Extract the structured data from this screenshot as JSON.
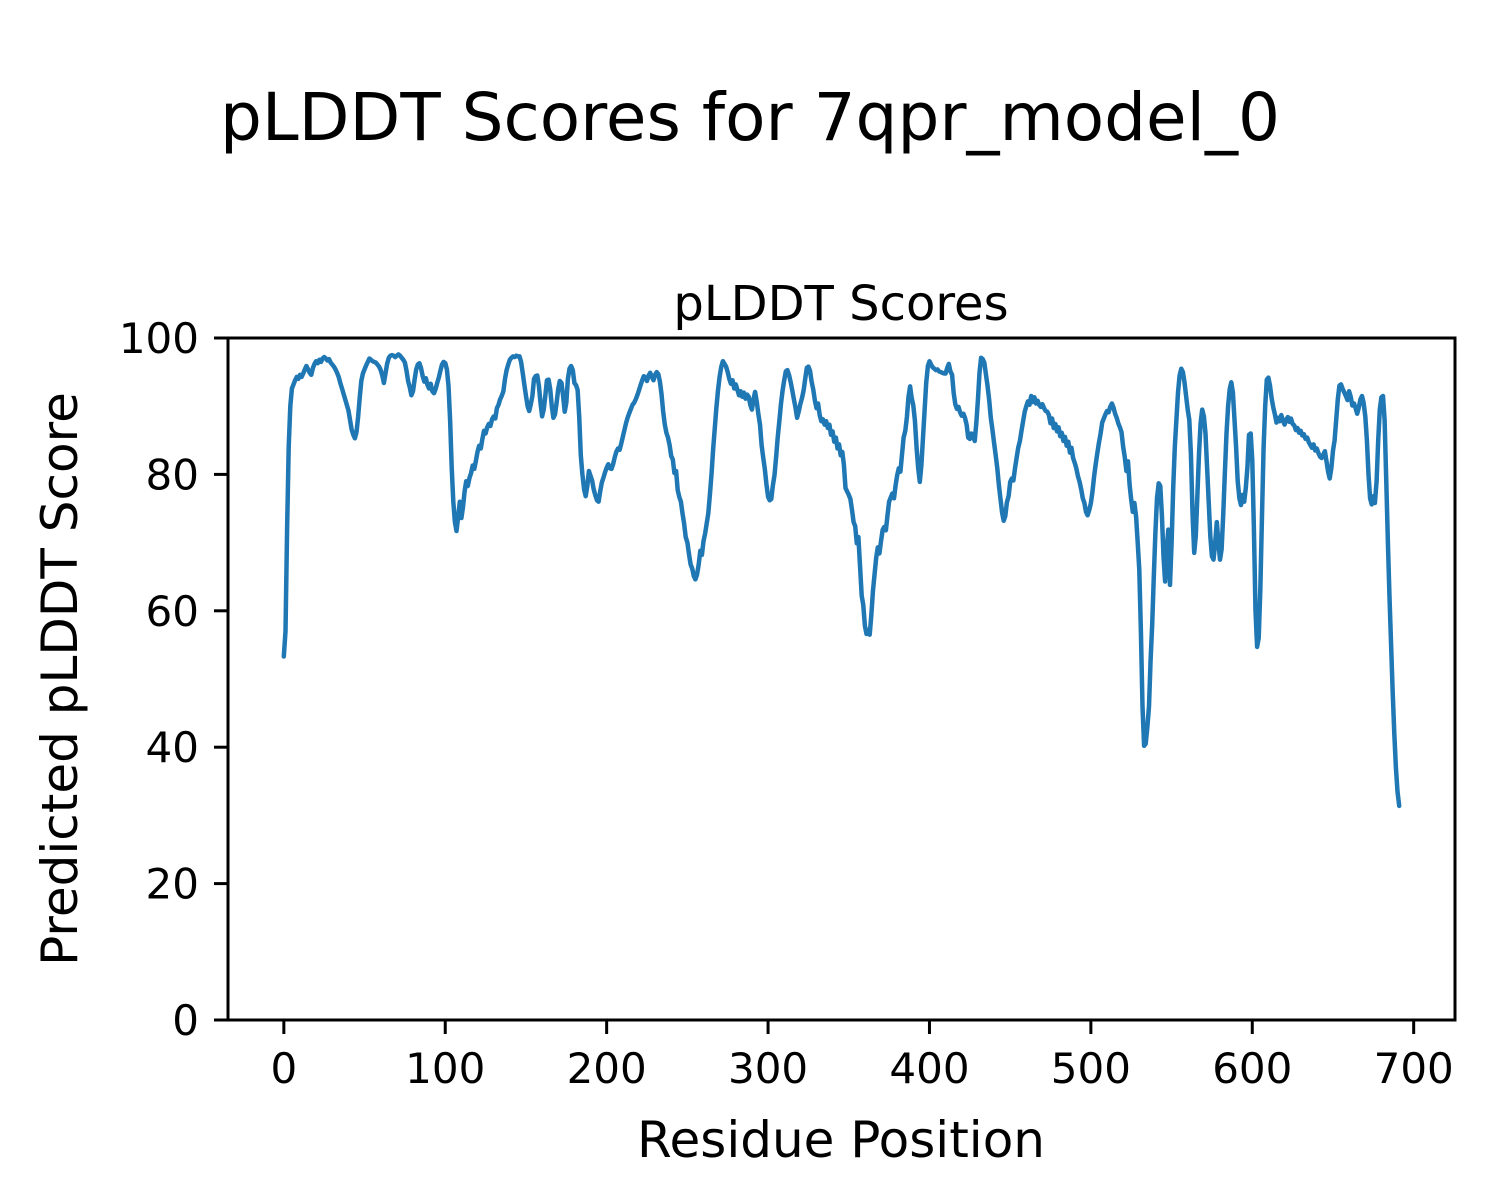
{
  "figure": {
    "suptitle": "pLDDT Scores for 7qpr_model_0",
    "axes_title": "pLDDT Scores",
    "xlabel": "Residue Position",
    "ylabel": "Predicted pLDDT Score",
    "background_color": "#ffffff",
    "line_color": "#1f77b4",
    "spine_color": "#000000"
  },
  "chart_data": {
    "type": "line",
    "title": "pLDDT Scores",
    "suptitle": "pLDDT Scores for 7qpr_model_0",
    "xlabel": "Residue Position",
    "ylabel": "Predicted pLDDT Score",
    "xlim": [
      -34.6,
      725.6
    ],
    "ylim": [
      0,
      100
    ],
    "x_ticks": [
      0,
      100,
      200,
      300,
      400,
      500,
      600,
      700
    ],
    "y_ticks": [
      0,
      20,
      40,
      60,
      80,
      100
    ],
    "grid": false,
    "legend_position": "none",
    "series": [
      {
        "name": "pLDDT",
        "x_start": 0,
        "x_step": 1,
        "values": [
          53.3,
          57,
          72,
          84,
          90,
          92.6,
          93.2,
          93.8,
          94.3,
          94,
          94.6,
          94.3,
          94.8,
          95.4,
          95.9,
          95.4,
          94.9,
          94.6,
          95.6,
          96.2,
          96.6,
          96.3,
          96.8,
          96.5,
          97,
          97.2,
          97,
          96.7,
          96.9,
          96.4,
          96.1,
          95.8,
          95.4,
          94.9,
          94.3,
          93.4,
          92.6,
          91.8,
          91,
          90.2,
          89.4,
          88,
          86.6,
          85.8,
          85.3,
          86.2,
          88.4,
          91.2,
          93.7,
          94.8,
          95.4,
          96,
          96.5,
          97,
          96.8,
          96.6,
          96.5,
          96.4,
          96.1,
          95.8,
          95.3,
          94.5,
          93.4,
          94.8,
          96.2,
          97.1,
          97.4,
          97.5,
          97.4,
          97.2,
          97.4,
          97.6,
          97.4,
          97.1,
          96.8,
          96.4,
          95.2,
          93.7,
          92.8,
          91.6,
          92.2,
          93.9,
          95.4,
          96.1,
          96.3,
          95.6,
          94.4,
          93.6,
          94.1,
          93.1,
          92.6,
          93.3,
          92.2,
          91.9,
          92.5,
          93.4,
          94.2,
          95.2,
          96.1,
          96.5,
          96.3,
          95.4,
          93,
          88,
          81,
          76,
          73,
          71.7,
          73.8,
          76,
          73.6,
          75.2,
          77.5,
          79,
          78.3,
          79.5,
          80.2,
          81.3,
          80.8,
          82,
          83.3,
          84.2,
          83.8,
          85.2,
          86.4,
          86,
          86.9,
          87.4,
          87.1,
          88.1,
          88.5,
          88.2,
          89.7,
          90.2,
          91,
          91.5,
          92.2,
          94,
          95.3,
          96.1,
          96.8,
          97.1,
          97.3,
          97.2,
          97.4,
          97.3,
          97.3,
          96.5,
          94.9,
          93.2,
          91.5,
          90,
          89.3,
          90.3,
          91.5,
          94,
          94.4,
          94.5,
          93,
          90.5,
          88.5,
          89.5,
          91.5,
          93.8,
          93.9,
          92.5,
          90,
          88.3,
          88.8,
          90.5,
          92.5,
          93.7,
          93.4,
          91.5,
          89.2,
          90.5,
          94,
          95.5,
          95.9,
          95.3,
          93.4,
          93.1,
          92.4,
          88.5,
          82.8,
          80,
          77.8,
          76.8,
          78.3,
          80.5,
          79.8,
          79.1,
          77.8,
          76.9,
          76.2,
          76,
          77.5,
          78.8,
          79.5,
          80.3,
          81,
          81.5,
          80.9,
          80.8,
          81.5,
          82.5,
          83.3,
          83.8,
          83.6,
          84.5,
          85.5,
          86.5,
          87.5,
          88.3,
          89,
          89.6,
          90.2,
          90.5,
          91,
          91.6,
          92.3,
          93.1,
          93.8,
          94.4,
          94.2,
          93.7,
          94.5,
          94.9,
          94.3,
          93.8,
          94.6,
          95,
          94.7,
          93.6,
          91.8,
          89.3,
          87.3,
          86.1,
          85.4,
          84.3,
          82.7,
          82.2,
          80.2,
          80.5,
          77.7,
          76.7,
          76,
          74.3,
          72.8,
          70.8,
          70,
          68.3,
          66.8,
          66.2,
          65.1,
          64.6,
          65.3,
          66.8,
          68.8,
          68.2,
          70.2,
          71.3,
          72.8,
          74.3,
          77.2,
          80.2,
          83.8,
          86.8,
          89.8,
          92.3,
          94.3,
          95.8,
          96.6,
          96.2,
          95.8,
          95,
          94,
          93.3,
          93.8,
          92.6,
          93.2,
          92.4,
          91.6,
          92.2,
          91.4,
          92,
          91.1,
          91.7,
          91.4,
          90.2,
          89.5,
          91,
          92.1,
          90.6,
          88.8,
          87.3,
          84.3,
          82.5,
          80.8,
          78.6,
          76.7,
          76.2,
          76.4,
          78.4,
          79.9,
          82.5,
          85.4,
          87.9,
          90.4,
          92.3,
          93.8,
          95.1,
          95.3,
          94.6,
          93.5,
          92.3,
          91,
          89.8,
          88.3,
          89.2,
          90.3,
          91.2,
          92.3,
          94,
          95.6,
          95.8,
          95.2,
          93.6,
          92.4,
          90.8,
          89.7,
          90.4,
          88.7,
          87.8,
          88.1,
          87.3,
          87.8,
          86.8,
          87.3,
          85.8,
          86.3,
          84.8,
          85.4,
          83.8,
          84.4,
          82.8,
          83.3,
          81.4,
          78,
          77.5,
          77,
          76.4,
          74.8,
          73,
          72.4,
          69.9,
          70.8,
          66.4,
          62.2,
          60.8,
          57.8,
          56.6,
          57.2,
          56.5,
          59.5,
          63,
          65.4,
          67.8,
          69.3,
          68.4,
          70.2,
          71.9,
          72.3,
          71.8,
          74,
          76,
          76.6,
          77.2,
          76.5,
          78.4,
          79.9,
          80.9,
          80.4,
          82.9,
          85.4,
          86.4,
          88.4,
          91.4,
          92.9,
          91.2,
          90.1,
          87.9,
          83.9,
          80.9,
          78.9,
          81.4,
          85.4,
          89.4,
          93.4,
          95.9,
          96.6,
          96.1,
          95.7,
          95.5,
          95.3,
          95.4,
          95.1,
          95,
          94.9,
          94.8,
          94.8,
          95.6,
          96.2,
          95.1,
          94.6,
          91.9,
          90.3,
          89.6,
          89.9,
          89.1,
          88.6,
          88.9,
          88.3,
          87.3,
          85.4,
          85.2,
          86,
          85.7,
          84.9,
          87.5,
          90.9,
          94.9,
          97.1,
          96.9,
          96.4,
          94.6,
          92.9,
          90.9,
          88.3,
          86.6,
          84.7,
          82.9,
          80.9,
          78.4,
          76.4,
          74.4,
          73.2,
          73.9,
          75.9,
          76.8,
          78.9,
          79.4,
          79.1,
          80.9,
          82.4,
          83.9,
          84.9,
          86.4,
          87.8,
          89.2,
          90,
          90.7,
          90.2,
          91.5,
          90.6,
          91.3,
          90.4,
          90.8,
          90.2,
          89.9,
          90.3,
          89.7,
          89.3,
          89.2,
          88.7,
          87.5,
          88.2,
          86.8,
          87.4,
          86.3,
          86.9,
          85.6,
          86.1,
          84.9,
          85.5,
          84.2,
          84.8,
          83.2,
          83.9,
          82.4,
          81.7,
          80.9,
          79.7,
          78.9,
          77.8,
          76.5,
          75.8,
          74.5,
          74,
          74.8,
          75.8,
          77.5,
          79.7,
          81.5,
          83.1,
          84.6,
          86,
          87.6,
          88.2,
          88.8,
          89.3,
          89.1,
          89.9,
          90.4,
          89.8,
          88.9,
          88.3,
          87.5,
          86.9,
          86.2,
          84,
          82.5,
          80.5,
          81.9,
          78.5,
          76.3,
          74.5,
          75.8,
          73.8,
          70,
          66,
          57,
          46,
          40.2,
          40.5,
          43,
          46,
          52.8,
          58,
          65,
          71.5,
          76.5,
          78.7,
          78.3,
          74,
          68,
          64.3,
          69,
          71.9,
          63.8,
          70,
          78,
          84,
          88,
          92,
          94.5,
          95.5,
          95,
          93.5,
          91.5,
          89.5,
          88,
          83,
          74,
          68.5,
          71,
          77,
          83,
          87.5,
          89.5,
          88.5,
          86,
          81,
          76,
          71,
          68,
          67.5,
          70,
          73,
          70,
          67.5,
          69,
          74,
          80,
          86,
          90,
          92.5,
          93.5,
          92,
          88,
          84,
          79,
          76.5,
          75.5,
          77,
          76,
          78,
          81,
          85.8,
          86,
          82,
          72,
          60,
          54.7,
          56,
          63,
          74,
          84,
          90,
          93.9,
          94.2,
          93,
          91.2,
          89.8,
          88.8,
          87.6,
          88.3,
          87.8,
          88.7,
          87.9,
          87.3,
          88,
          88.4,
          87.7,
          88.2,
          87.4,
          87.2,
          86.5,
          86.8,
          86.1,
          86.4,
          85.7,
          85.9,
          85.2,
          85.4,
          84.7,
          84.3,
          83.9,
          84.4,
          83.5,
          83.8,
          83.1,
          82.6,
          82.4,
          82.9,
          83.4,
          81.9,
          80.4,
          79.4,
          81,
          83.5,
          85,
          88,
          91,
          93,
          93.2,
          92.5,
          92,
          91.5,
          90.9,
          92.2,
          91.4,
          90.1,
          90.4,
          89.7,
          88.9,
          89.8,
          91,
          91.5,
          90.5,
          88.5,
          85,
          80,
          76.5,
          75.6,
          76.8,
          75.8,
          79,
          85,
          89.5,
          91.3,
          91.5,
          88,
          79.4,
          70,
          62,
          55,
          48,
          42,
          37,
          33.5,
          31.4
        ]
      }
    ]
  }
}
